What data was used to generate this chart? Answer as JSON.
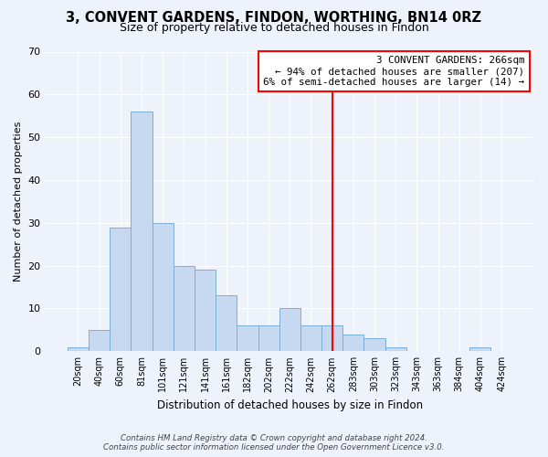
{
  "title": "3, CONVENT GARDENS, FINDON, WORTHING, BN14 0RZ",
  "subtitle": "Size of property relative to detached houses in Findon",
  "xlabel": "Distribution of detached houses by size in Findon",
  "ylabel": "Number of detached properties",
  "bar_labels": [
    "20sqm",
    "40sqm",
    "60sqm",
    "81sqm",
    "101sqm",
    "121sqm",
    "141sqm",
    "161sqm",
    "182sqm",
    "202sqm",
    "222sqm",
    "242sqm",
    "262sqm",
    "283sqm",
    "303sqm",
    "323sqm",
    "343sqm",
    "363sqm",
    "384sqm",
    "404sqm",
    "424sqm"
  ],
  "bar_values": [
    1,
    5,
    29,
    56,
    30,
    20,
    19,
    13,
    6,
    6,
    10,
    6,
    6,
    4,
    3,
    1,
    0,
    0,
    0,
    1,
    0
  ],
  "bar_color": "#c6d9f0",
  "bar_edge_color": "#7bafd4",
  "vline_x_idx": 12,
  "vline_color": "red",
  "annotation_title": "3 CONVENT GARDENS: 266sqm",
  "annotation_line1": "← 94% of detached houses are smaller (207)",
  "annotation_line2": "6% of semi-detached houses are larger (14) →",
  "ylim": [
    0,
    70
  ],
  "yticks": [
    0,
    10,
    20,
    30,
    40,
    50,
    60,
    70
  ],
  "footer1": "Contains HM Land Registry data © Crown copyright and database right 2024.",
  "footer2": "Contains public sector information licensed under the Open Government Licence v3.0.",
  "background_color": "#eef2fa"
}
